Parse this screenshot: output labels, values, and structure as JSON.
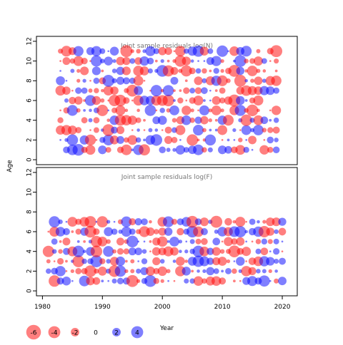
{
  "chart_data": [
    {
      "type": "scatter",
      "title": "Joint sample residuals log(N)",
      "ylabel": "Age",
      "x_ticks": [
        1980,
        1990,
        2000,
        2010,
        2020
      ],
      "y_ticks": [
        0,
        2,
        4,
        6,
        8,
        10,
        12
      ],
      "ylim": [
        -0.5,
        12.5
      ],
      "xlim": [
        1979,
        2022.5
      ],
      "years": [
        1983,
        2019
      ],
      "ages": [
        1,
        2,
        3,
        4,
        5,
        6,
        7,
        8,
        9,
        10,
        11
      ],
      "negative_color": "#ff0000",
      "positive_color": "#0000ff"
    },
    {
      "type": "scatter",
      "title": "Joint sample residuals log(F)",
      "xlabel": "Year",
      "x_ticks": [
        1980,
        1990,
        2000,
        2010,
        2020
      ],
      "y_ticks": [
        0,
        2,
        4,
        6,
        8,
        10,
        12
      ],
      "ylim": [
        -0.5,
        12.5
      ],
      "xlim": [
        1979,
        2022.5
      ],
      "years": [
        1981,
        2020
      ],
      "ages": [
        1,
        2,
        3,
        4,
        5,
        6,
        7
      ],
      "negative_color": "#ff0000",
      "positive_color": "#0000ff"
    }
  ],
  "legend": {
    "title": "Year",
    "entries": [
      {
        "label": "-6",
        "value": -6
      },
      {
        "label": "-4",
        "value": -4
      },
      {
        "label": "-2",
        "value": -2
      },
      {
        "label": "0",
        "value": 0
      },
      {
        "label": "2",
        "value": 2
      },
      {
        "label": "4",
        "value": 4
      }
    ]
  },
  "colors": {
    "negative": "#ff0000",
    "positive": "#0000ff",
    "axis": "#000000",
    "title": "#777777"
  }
}
